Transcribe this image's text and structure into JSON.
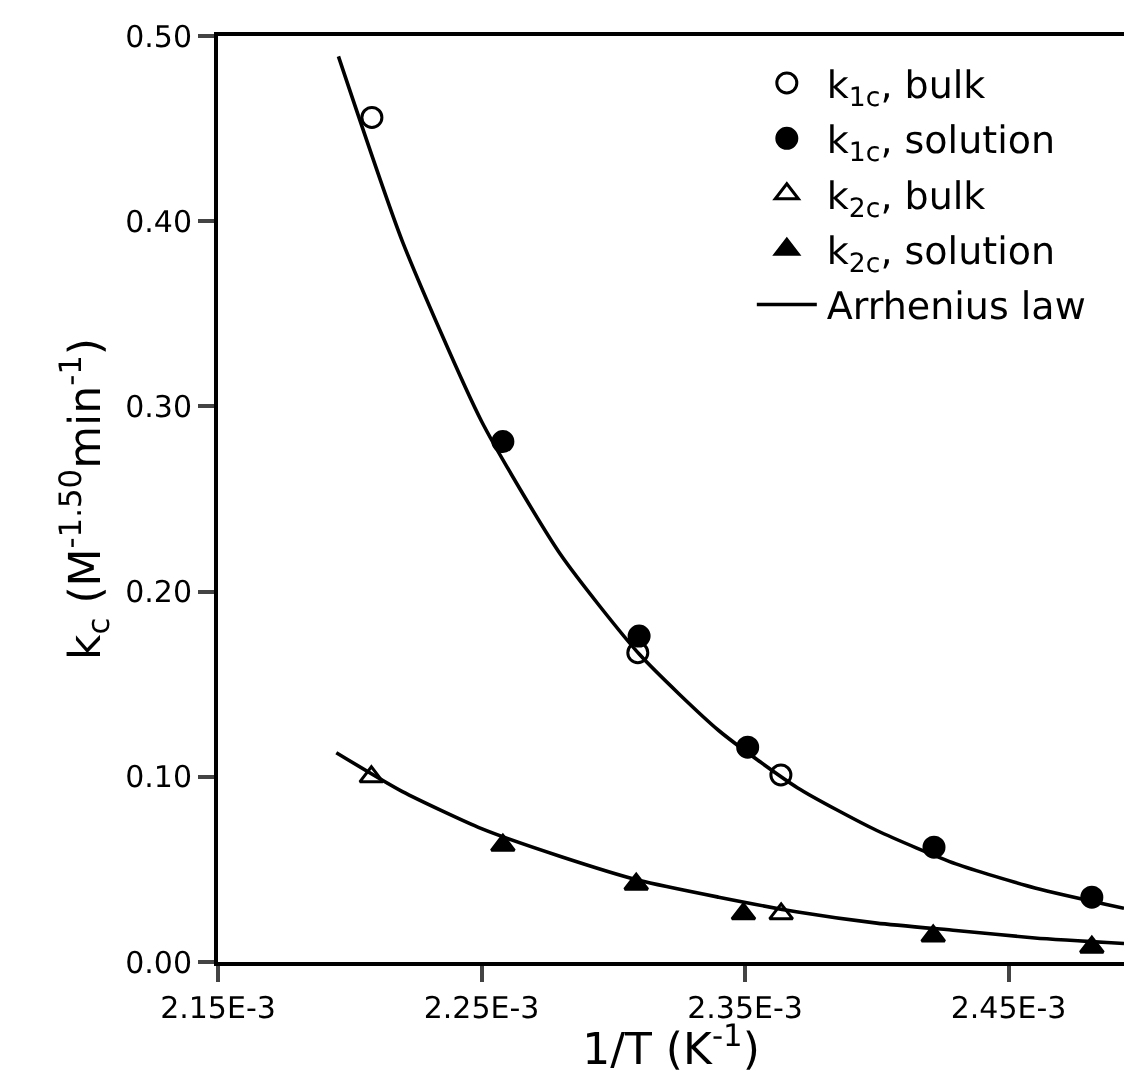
{
  "chart_data": {
    "type": "scatter",
    "xlabel": "1/T (K$^{-1}$)",
    "ylabel": "k$_{c}$ (M$^{-1.50}$min$^{-1}$)",
    "xlim": [
      0.00215,
      0.0024938
    ],
    "ylim": [
      0,
      0.5
    ],
    "xticks": [
      {
        "value": 0.00215,
        "label": "2.15E-3"
      },
      {
        "value": 0.00225,
        "label": "2.25E-3"
      },
      {
        "value": 0.00235,
        "label": "2.35E-3"
      },
      {
        "value": 0.00245,
        "label": "2.45E-3"
      }
    ],
    "yticks": [
      {
        "value": 0,
        "label": "0.00"
      },
      {
        "value": 0.1,
        "label": "0.10"
      },
      {
        "value": 0.2,
        "label": "0.20"
      },
      {
        "value": 0.3,
        "label": "0.30"
      },
      {
        "value": 0.4,
        "label": "0.40"
      },
      {
        "value": 0.5,
        "label": "0.50"
      }
    ],
    "grid": false,
    "legend": "top right",
    "series": [
      {
        "name": "k$_{1c}$, bulk",
        "marker": "circle",
        "color": "#ffffff",
        "x": [
          0.0022084,
          0.0023093,
          0.0023636
        ],
        "values": [
          0.456,
          0.167,
          0.101
        ]
      },
      {
        "name": "k$_{1c}$, solution",
        "marker": "circle",
        "color": "#000000",
        "x": [
          0.0022581,
          0.0023098,
          0.002351,
          0.0024217,
          0.0024816
        ],
        "values": [
          0.281,
          0.176,
          0.116,
          0.062,
          0.035
        ]
      },
      {
        "name": "k$_{2c}$, bulk",
        "marker": "triangle",
        "color": "#ffffff",
        "x": [
          0.0022082,
          0.0023637
        ],
        "values": [
          0.1,
          0.026
        ]
      },
      {
        "name": "k$_{2c}$, solution",
        "marker": "triangle",
        "color": "#000000",
        "x": [
          0.0022581,
          0.0023087,
          0.0023494,
          0.0024214,
          0.0024816
        ],
        "values": [
          0.063,
          0.042,
          0.026,
          0.014,
          0.008
        ]
      },
      {
        "name": "Arrhenius law",
        "type": "line",
        "marker": "none",
        "line_style": "solid",
        "color": "#000000",
        "x": [
          0.0021957,
          0.00222,
          0.00225,
          0.00228,
          0.00231,
          0.00234,
          0.00237,
          0.0024,
          0.00243,
          0.00246,
          0.0024938
        ],
        "values": [
          0.489,
          0.389,
          0.292,
          0.22,
          0.166,
          0.125,
          0.094,
          0.071,
          0.053,
          0.04,
          0.029
        ]
      },
      {
        "type": "line",
        "marker": "none",
        "line_style": "solid",
        "color": "#000000",
        "x": [
          0.0021949,
          0.00222,
          0.00225,
          0.00228,
          0.00231,
          0.00234,
          0.00237,
          0.0024,
          0.00243,
          0.00246,
          0.0024938
        ],
        "values": [
          0.113,
          0.092,
          0.072,
          0.057,
          0.044,
          0.035,
          0.027,
          0.021,
          0.017,
          0.013,
          0.01
        ]
      }
    ]
  }
}
